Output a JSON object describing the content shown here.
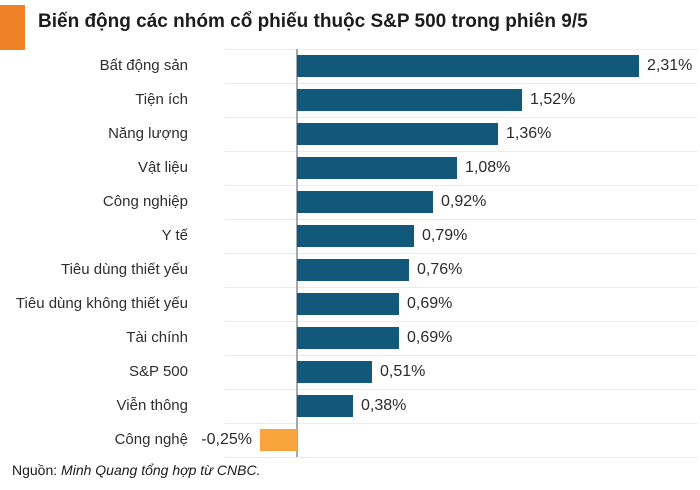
{
  "chart_data": {
    "type": "bar",
    "orientation": "horizontal",
    "title": "Biến động các nhóm cổ phiếu thuộc S&P 500 trong phiên 9/5",
    "unit": "%",
    "categories": [
      "Bất động sản",
      "Tiện ích",
      "Năng lượng",
      "Vật liệu",
      "Công nghiệp",
      "Y tế",
      "Tiêu dùng thiết yếu",
      "Tiêu dùng không thiết yếu",
      "Tài chính",
      "S&P 500",
      "Viễn thông",
      "Công nghệ"
    ],
    "values": [
      2.31,
      1.52,
      1.36,
      1.08,
      0.92,
      0.79,
      0.76,
      0.69,
      0.69,
      0.51,
      0.38,
      -0.25
    ],
    "value_labels": [
      "2,31%",
      "1,52%",
      "1,36%",
      "1,08%",
      "0,92%",
      "0,79%",
      "0,76%",
      "0,69%",
      "0,69%",
      "0,51%",
      "0,38%",
      "-0,25%"
    ],
    "xlim": [
      -0.5,
      2.75
    ],
    "grid": true,
    "legend": false,
    "positive_color": "#12587a",
    "negative_color": "#f9a43c",
    "accent_color": "#ef8227",
    "source_prefix": "Nguồn:",
    "source_text": "Minh Quang tổng hợp từ CNBC."
  }
}
